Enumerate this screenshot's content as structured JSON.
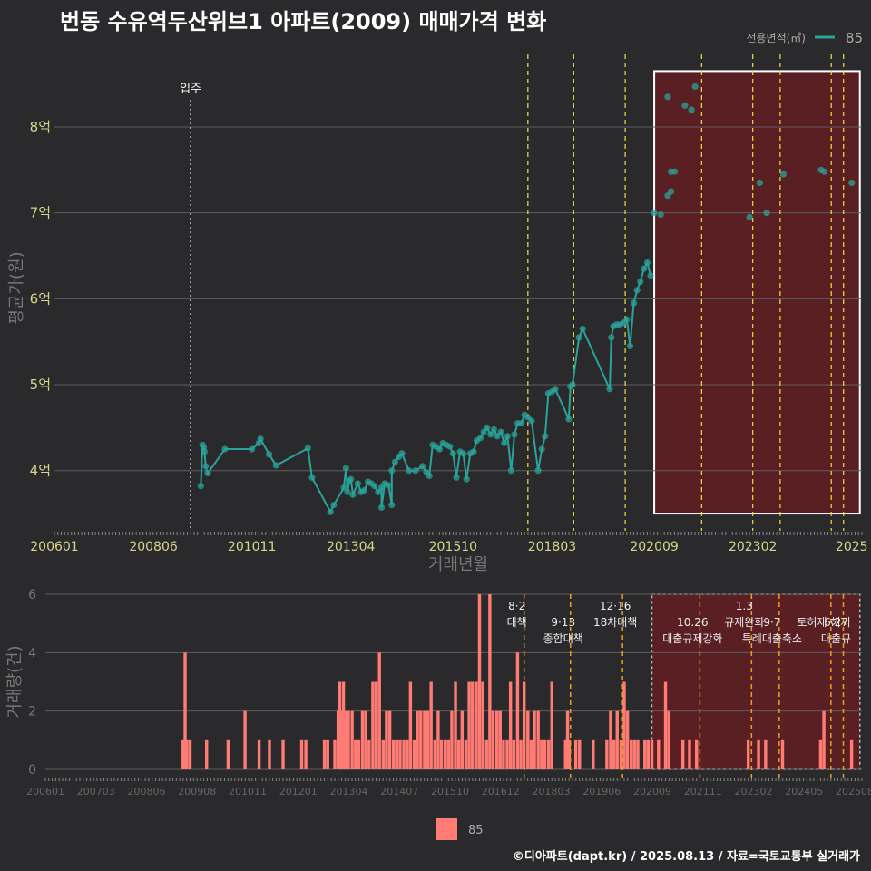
{
  "title": "번동 수유역두산위브1 아파트(2009) 매매가격 변화",
  "footer": "©디아파트(dapt.kr) / 2025.08.13 / 자료=국토교통부 실거래가",
  "legend": {
    "title": "전용면적(㎡)",
    "series_label": "85"
  },
  "colors": {
    "background": "#2a2a2c",
    "line": "#2aa39a",
    "bar": "#ff7b73",
    "grid": "#5e5e5e",
    "policy_yellow": "#f0e040",
    "policy_orange": "#e8a020",
    "highlight_fill": "#5a1f22",
    "axis_text": "#d6d68a"
  },
  "chart_data": [
    {
      "type": "line",
      "ylabel": "평균가(원)",
      "xlabel": "거래년월",
      "xlim": [
        2006.0,
        2025.75
      ],
      "ylim": [
        3.3,
        8.95
      ],
      "y_ticks": [
        {
          "v": 4,
          "label": "4억"
        },
        {
          "v": 5,
          "label": "5억"
        },
        {
          "v": 6,
          "label": "6억"
        },
        {
          "v": 7,
          "label": "7억"
        },
        {
          "v": 8,
          "label": "8억"
        }
      ],
      "x_ticks": [
        {
          "v": 2006.0,
          "label": "200601"
        },
        {
          "v": 2008.42,
          "label": "200806"
        },
        {
          "v": 2010.83,
          "label": "201011"
        },
        {
          "v": 2013.25,
          "label": "201304"
        },
        {
          "v": 2015.75,
          "label": "201510"
        },
        {
          "v": 2018.17,
          "label": "201803"
        },
        {
          "v": 2020.67,
          "label": "202009"
        },
        {
          "v": 2023.08,
          "label": "202302"
        },
        {
          "v": 2025.5,
          "label": "2025"
        }
      ],
      "movein": {
        "x": 2009.33,
        "label": "입주"
      },
      "policy_lines": [
        2017.58,
        2018.7,
        2019.96,
        2021.83,
        2023.08,
        2023.75,
        2025.0,
        2025.3
      ],
      "highlight": {
        "x0": 2020.67,
        "x1": 2025.7,
        "y0": 3.5,
        "y1": 8.65
      },
      "series": [
        {
          "name": "85",
          "points": [
            [
              2009.58,
              3.82
            ],
            [
              2009.62,
              4.3
            ],
            [
              2009.65,
              4.27
            ],
            [
              2009.67,
              4.22
            ],
            [
              2009.7,
              4.05
            ],
            [
              2009.75,
              3.97
            ],
            [
              2010.17,
              4.25
            ],
            [
              2010.83,
              4.25
            ],
            [
              2011.0,
              4.32
            ],
            [
              2011.04,
              4.37
            ],
            [
              2011.25,
              4.19
            ],
            [
              2011.42,
              4.06
            ],
            [
              2012.2,
              4.26
            ],
            [
              2012.3,
              3.92
            ],
            [
              2012.75,
              3.52
            ],
            [
              2012.83,
              3.6
            ],
            [
              2013.08,
              3.8
            ],
            [
              2013.13,
              4.03
            ],
            [
              2013.17,
              3.75
            ],
            [
              2013.21,
              3.88
            ],
            [
              2013.25,
              3.9
            ],
            [
              2013.3,
              3.72
            ],
            [
              2013.42,
              3.85
            ],
            [
              2013.5,
              3.75
            ],
            [
              2013.58,
              3.77
            ],
            [
              2013.67,
              3.87
            ],
            [
              2013.75,
              3.85
            ],
            [
              2013.83,
              3.82
            ],
            [
              2013.92,
              3.75
            ],
            [
              2014.0,
              3.8
            ],
            [
              2014.08,
              3.85
            ],
            [
              2014.0,
              3.57
            ],
            [
              2014.25,
              3.6
            ],
            [
              2014.17,
              3.83
            ],
            [
              2014.25,
              4.0
            ],
            [
              2014.33,
              4.1
            ],
            [
              2014.42,
              4.16
            ],
            [
              2014.5,
              4.2
            ],
            [
              2014.67,
              4.0
            ],
            [
              2014.83,
              4.0
            ],
            [
              2015.0,
              4.05
            ],
            [
              2015.1,
              3.98
            ],
            [
              2015.17,
              3.94
            ],
            [
              2015.25,
              4.3
            ],
            [
              2015.33,
              4.28
            ],
            [
              2015.42,
              4.25
            ],
            [
              2015.5,
              4.32
            ],
            [
              2015.58,
              4.3
            ],
            [
              2015.67,
              4.28
            ],
            [
              2015.75,
              4.2
            ],
            [
              2015.83,
              3.92
            ],
            [
              2015.92,
              4.22
            ],
            [
              2016.0,
              4.2
            ],
            [
              2016.08,
              3.9
            ],
            [
              2016.17,
              4.2
            ],
            [
              2016.25,
              4.22
            ],
            [
              2016.33,
              4.35
            ],
            [
              2016.42,
              4.38
            ],
            [
              2016.5,
              4.45
            ],
            [
              2016.58,
              4.5
            ],
            [
              2016.67,
              4.42
            ],
            [
              2016.75,
              4.48
            ],
            [
              2016.83,
              4.4
            ],
            [
              2016.92,
              4.45
            ],
            [
              2017.0,
              4.32
            ],
            [
              2017.08,
              4.4
            ],
            [
              2017.17,
              4.0
            ],
            [
              2017.25,
              4.42
            ],
            [
              2017.33,
              4.55
            ],
            [
              2017.42,
              4.55
            ],
            [
              2017.5,
              4.65
            ],
            [
              2017.58,
              4.62
            ],
            [
              2017.67,
              4.58
            ],
            [
              2017.83,
              4.0
            ],
            [
              2017.92,
              4.25
            ],
            [
              2018.0,
              4.4
            ],
            [
              2018.08,
              4.9
            ],
            [
              2018.17,
              4.92
            ],
            [
              2018.25,
              4.95
            ],
            [
              2018.58,
              4.6
            ],
            [
              2018.62,
              4.98
            ],
            [
              2018.67,
              5.0
            ],
            [
              2018.83,
              5.55
            ],
            [
              2018.92,
              5.65
            ],
            [
              2019.58,
              4.95
            ],
            [
              2019.62,
              5.55
            ],
            [
              2019.67,
              5.68
            ],
            [
              2019.75,
              5.7
            ],
            [
              2019.83,
              5.7
            ],
            [
              2019.92,
              5.72
            ],
            [
              2020.0,
              5.76
            ],
            [
              2020.08,
              5.45
            ],
            [
              2020.17,
              5.95
            ],
            [
              2020.25,
              6.1
            ],
            [
              2020.33,
              6.2
            ],
            [
              2020.42,
              6.35
            ],
            [
              2020.5,
              6.42
            ],
            [
              2020.58,
              6.27
            ],
            [
              2020.67,
              7.0
            ],
            [
              2020.83,
              6.98
            ],
            [
              2021.0,
              7.2
            ],
            [
              2021.08,
              7.48
            ],
            [
              2021.17,
              7.48
            ],
            [
              2021.0,
              8.35
            ],
            [
              2021.08,
              7.25
            ],
            [
              2021.42,
              8.25
            ],
            [
              2021.58,
              8.2
            ],
            [
              2021.67,
              8.47
            ],
            [
              2023.0,
              6.95
            ],
            [
              2023.25,
              7.35
            ],
            [
              2023.42,
              7.0
            ],
            [
              2023.83,
              7.45
            ],
            [
              2024.75,
              7.5
            ],
            [
              2024.83,
              7.48
            ],
            [
              2025.5,
              7.35
            ]
          ]
        }
      ]
    },
    {
      "type": "bar",
      "ylabel": "거래량(건)",
      "ylim": [
        0,
        6
      ],
      "y_ticks": [
        {
          "v": 0,
          "label": "0"
        },
        {
          "v": 2,
          "label": "2"
        },
        {
          "v": 4,
          "label": "4"
        },
        {
          "v": 6,
          "label": "6"
        }
      ],
      "x_tick_labels": [
        "200601",
        "200703",
        "200806",
        "200908",
        "201011",
        "201201",
        "201304",
        "201407",
        "201510",
        "201612",
        "201803",
        "201906",
        "202009",
        "202111",
        "202302",
        "202405",
        "202508"
      ],
      "bars": [
        [
          2009.33,
          1
        ],
        [
          2009.38,
          4
        ],
        [
          2009.42,
          1
        ],
        [
          2009.5,
          1
        ],
        [
          2009.9,
          1
        ],
        [
          2010.42,
          1
        ],
        [
          2010.83,
          2
        ],
        [
          2011.17,
          1
        ],
        [
          2011.42,
          1
        ],
        [
          2011.75,
          1
        ],
        [
          2012.2,
          1
        ],
        [
          2012.3,
          1
        ],
        [
          2012.75,
          1
        ],
        [
          2012.83,
          1
        ],
        [
          2013.0,
          1
        ],
        [
          2013.08,
          2
        ],
        [
          2013.12,
          3
        ],
        [
          2013.17,
          2
        ],
        [
          2013.21,
          3
        ],
        [
          2013.25,
          2
        ],
        [
          2013.33,
          2
        ],
        [
          2013.42,
          2
        ],
        [
          2013.5,
          1
        ],
        [
          2013.58,
          1
        ],
        [
          2013.67,
          2
        ],
        [
          2013.75,
          2
        ],
        [
          2013.83,
          1
        ],
        [
          2013.92,
          3
        ],
        [
          2014.0,
          3
        ],
        [
          2014.08,
          4
        ],
        [
          2014.17,
          1
        ],
        [
          2014.25,
          2
        ],
        [
          2014.33,
          2
        ],
        [
          2014.42,
          1
        ],
        [
          2014.5,
          1
        ],
        [
          2014.58,
          1
        ],
        [
          2014.67,
          1
        ],
        [
          2014.75,
          1
        ],
        [
          2014.83,
          3
        ],
        [
          2014.92,
          1
        ],
        [
          2015.0,
          2
        ],
        [
          2015.08,
          2
        ],
        [
          2015.17,
          2
        ],
        [
          2015.25,
          2
        ],
        [
          2015.33,
          3
        ],
        [
          2015.42,
          1
        ],
        [
          2015.5,
          2
        ],
        [
          2015.58,
          1
        ],
        [
          2015.67,
          1
        ],
        [
          2015.75,
          1
        ],
        [
          2015.83,
          2
        ],
        [
          2015.92,
          3
        ],
        [
          2016.0,
          1
        ],
        [
          2016.08,
          2
        ],
        [
          2016.17,
          1
        ],
        [
          2016.25,
          3
        ],
        [
          2016.33,
          3
        ],
        [
          2016.42,
          3
        ],
        [
          2016.5,
          6
        ],
        [
          2016.58,
          3
        ],
        [
          2016.67,
          1
        ],
        [
          2016.75,
          6
        ],
        [
          2016.83,
          2
        ],
        [
          2016.92,
          2
        ],
        [
          2017.0,
          2
        ],
        [
          2017.08,
          1
        ],
        [
          2017.17,
          1
        ],
        [
          2017.25,
          3
        ],
        [
          2017.33,
          1
        ],
        [
          2017.42,
          4
        ],
        [
          2017.5,
          1
        ],
        [
          2017.58,
          3
        ],
        [
          2017.67,
          2
        ],
        [
          2017.75,
          1
        ],
        [
          2017.83,
          2
        ],
        [
          2017.92,
          2
        ],
        [
          2018.0,
          1
        ],
        [
          2018.08,
          1
        ],
        [
          2018.17,
          1
        ],
        [
          2018.25,
          3
        ],
        [
          2018.58,
          1
        ],
        [
          2018.63,
          2
        ],
        [
          2018.67,
          1
        ],
        [
          2018.83,
          1
        ],
        [
          2018.92,
          1
        ],
        [
          2019.25,
          1
        ],
        [
          2019.58,
          1
        ],
        [
          2019.67,
          2
        ],
        [
          2019.75,
          1
        ],
        [
          2019.83,
          2
        ],
        [
          2019.92,
          1
        ],
        [
          2020.0,
          3
        ],
        [
          2020.08,
          2
        ],
        [
          2020.17,
          1
        ],
        [
          2020.25,
          1
        ],
        [
          2020.33,
          1
        ],
        [
          2020.5,
          1
        ],
        [
          2020.58,
          1
        ],
        [
          2020.67,
          1
        ],
        [
          2020.83,
          1
        ],
        [
          2021.0,
          3
        ],
        [
          2021.08,
          2
        ],
        [
          2021.42,
          1
        ],
        [
          2021.58,
          1
        ],
        [
          2021.75,
          1
        ],
        [
          2023.0,
          1
        ],
        [
          2023.25,
          1
        ],
        [
          2023.42,
          1
        ],
        [
          2023.83,
          1
        ],
        [
          2024.75,
          1
        ],
        [
          2024.83,
          2
        ],
        [
          2025.5,
          1
        ]
      ],
      "annotations": [
        {
          "x": 2017.58,
          "date": "8·2",
          "text": "대책",
          "color": "orange"
        },
        {
          "x": 2018.7,
          "date": "9·13",
          "text": "종합대책",
          "color": "orange"
        },
        {
          "x": 2019.96,
          "date": "12·16",
          "text": "18차대책",
          "color": "orange"
        },
        {
          "x": 2021.83,
          "date": "10.26",
          "text": "대출규제강화",
          "color": "orange"
        },
        {
          "x": 2023.08,
          "date": "1.3",
          "text": "규제완화",
          "color": "orange"
        },
        {
          "x": 2023.75,
          "date": "9·7",
          "text": "특례대출축소",
          "color": "orange"
        },
        {
          "x": 2025.0,
          "date": "",
          "text": "토허제 해제",
          "color": "orange"
        },
        {
          "x": 2025.3,
          "date": "6.27",
          "text": "대출규",
          "color": "orange"
        }
      ]
    }
  ]
}
